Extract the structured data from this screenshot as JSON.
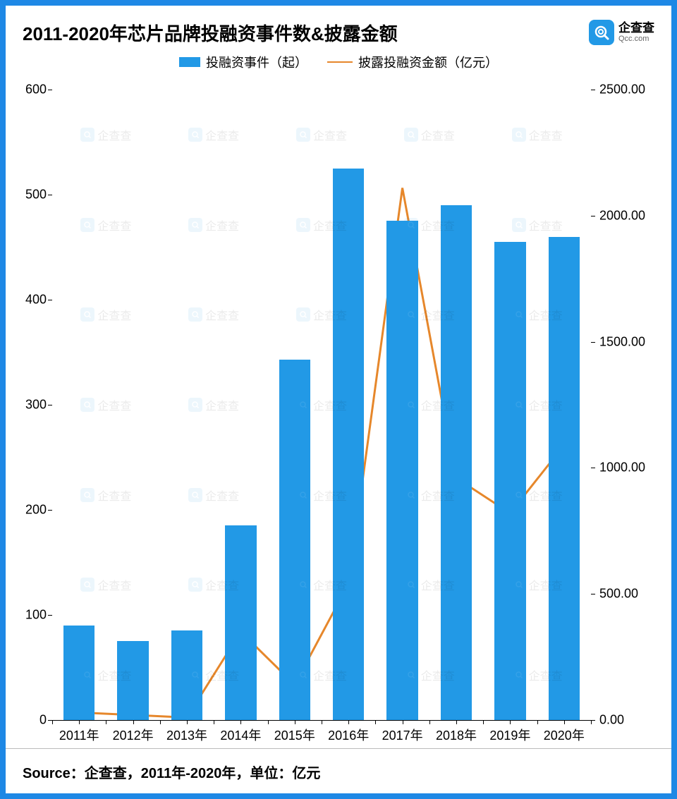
{
  "border_color": "#1e88e5",
  "title": "2011-2020年芯片品牌投融资事件数&披露金额",
  "brand": {
    "name": "企查查",
    "domain": "Qcc.com",
    "color": "#2299e6"
  },
  "legend": {
    "bar_label": "投融资事件（起）",
    "line_label": "披露投融资金额（亿元）"
  },
  "chart": {
    "type": "bar+line",
    "categories": [
      "2011年",
      "2012年",
      "2013年",
      "2014年",
      "2015年",
      "2016年",
      "2017年",
      "2018年",
      "2019年",
      "2020年"
    ],
    "bar_values": [
      90,
      75,
      85,
      185,
      343,
      525,
      475,
      490,
      455,
      460
    ],
    "line_values": [
      30,
      20,
      10,
      350,
      140,
      540,
      2110,
      960,
      820,
      1090
    ],
    "bar_color": "#2299e6",
    "line_color": "#e6872b",
    "line_width": 3,
    "background_color": "#ffffff",
    "y_left": {
      "min": 0,
      "max": 600,
      "step": 100,
      "labels": [
        "0",
        "100",
        "200",
        "300",
        "400",
        "500",
        "600"
      ]
    },
    "y_right": {
      "min": 0,
      "max": 2500,
      "step": 500,
      "labels": [
        "0.00",
        "500.00",
        "1000.00",
        "1500.00",
        "2000.00",
        "2500.00"
      ]
    },
    "axis_fontsize": 18,
    "title_fontsize": 26,
    "bar_width_ratio": 0.58
  },
  "footer": "Source：企查查，2011年-2020年，单位：亿元",
  "watermark_text": "企查查"
}
